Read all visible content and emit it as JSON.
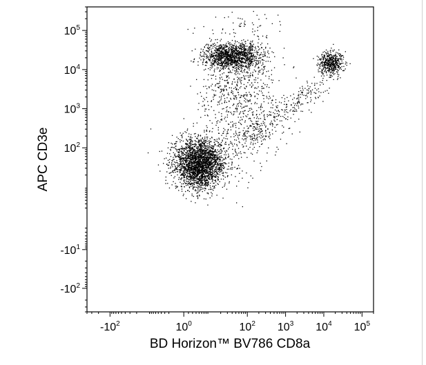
{
  "chart_data": {
    "type": "scatter",
    "title": "",
    "xlabel": "BD Horizon™ BV786  CD8a",
    "ylabel": "APC  CD3e",
    "x_scale": "biexponential",
    "y_scale": "biexponential",
    "xlim": [
      -400,
      200000
    ],
    "ylim": [
      -400,
      400000
    ],
    "grid": false,
    "legend": "none",
    "point_color": "#000000",
    "x_ticks": [
      {
        "base": "-10",
        "exp": "2",
        "value": -100
      },
      {
        "base": "10",
        "exp": "0",
        "value": 1
      },
      {
        "base": "10",
        "exp": "2",
        "value": 100
      },
      {
        "base": "10",
        "exp": "3",
        "value": 1000
      },
      {
        "base": "10",
        "exp": "4",
        "value": 10000
      },
      {
        "base": "10",
        "exp": "5",
        "value": 100000
      }
    ],
    "y_ticks": [
      {
        "base": "-10",
        "exp": "2",
        "value": -100
      },
      {
        "base": "-10",
        "exp": "1",
        "value": -10
      },
      {
        "base": "10",
        "exp": "2",
        "value": 100
      },
      {
        "base": "10",
        "exp": "3",
        "value": 1000
      },
      {
        "base": "10",
        "exp": "4",
        "value": 10000
      },
      {
        "base": "10",
        "exp": "5",
        "value": 100000
      }
    ],
    "populations": [
      {
        "x_center": 5,
        "y_center": 40,
        "approx_events": 2600
      },
      {
        "x_center": 40,
        "y_center": 22000,
        "approx_events": 1300
      },
      {
        "x_center": 15000,
        "y_center": 15000,
        "approx_events": 500
      },
      {
        "x_center": 60,
        "y_center": 2500,
        "approx_events": 900
      },
      {
        "x_center": 800,
        "y_center": 800,
        "approx_events": 300
      }
    ]
  }
}
